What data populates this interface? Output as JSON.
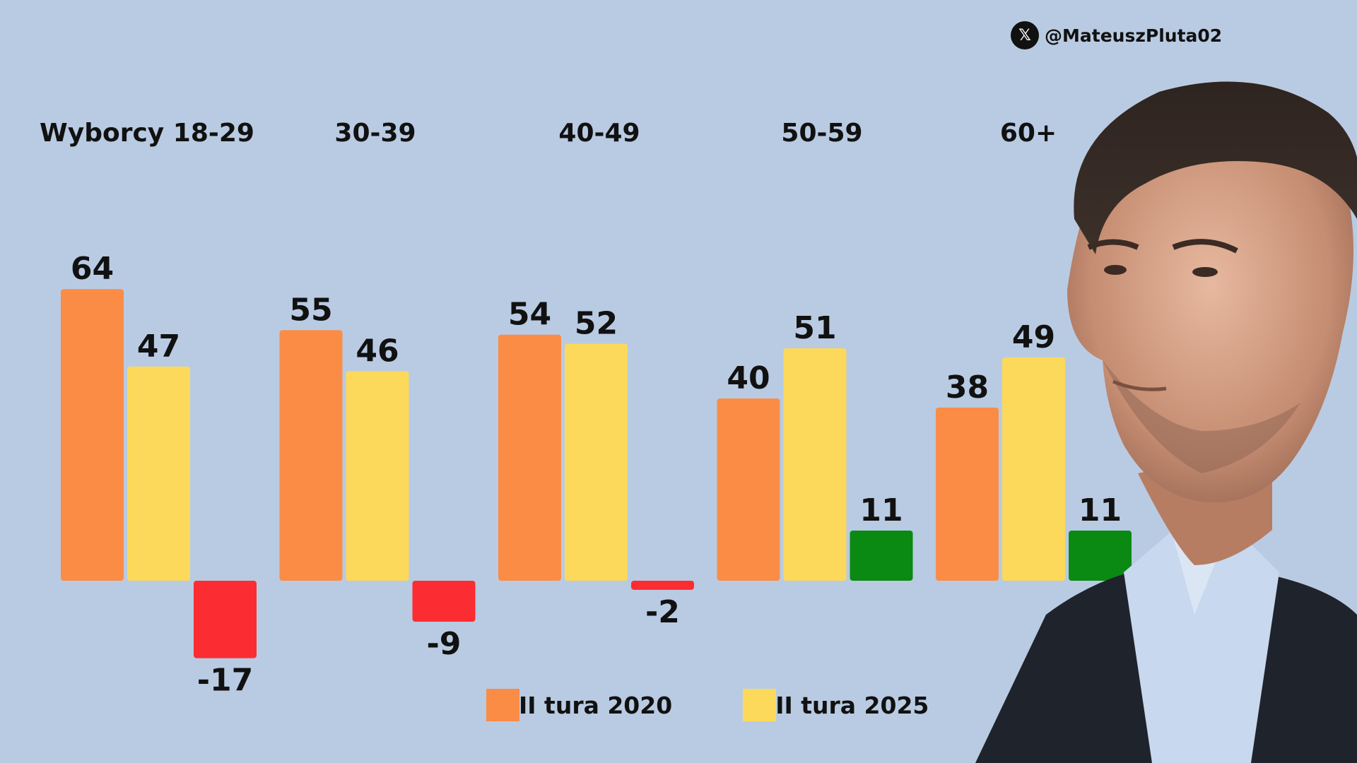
{
  "handle": "@MateuszPluta02",
  "icons": {
    "handle_logo": "x-logo-icon",
    "logo_glyph": "𝕏"
  },
  "colors": {
    "background": "#b9cbe2",
    "series_2020": "#fb8c45",
    "series_2025": "#fcd95a",
    "decline": "#fb2d33",
    "increase": "#0b8a13",
    "text": "#111111"
  },
  "chart_data": {
    "type": "bar",
    "categories": [
      "Wyborcy 18-29",
      "30-39",
      "40-49",
      "50-59",
      "60+"
    ],
    "series": [
      {
        "name": "II tura 2020",
        "values": [
          64,
          55,
          54,
          40,
          38
        ]
      },
      {
        "name": "II tura 2025",
        "values": [
          47,
          46,
          52,
          51,
          49
        ]
      },
      {
        "values": [
          -17,
          -9,
          -2,
          11,
          11
        ]
      }
    ],
    "ylim": [
      -20,
      70
    ],
    "grid": false,
    "legend": "bottom-center"
  },
  "legend": [
    {
      "label": "II tura 2020",
      "color": "#fb8c45"
    },
    {
      "label": "II tura 2025",
      "color": "#fcd95a"
    }
  ]
}
